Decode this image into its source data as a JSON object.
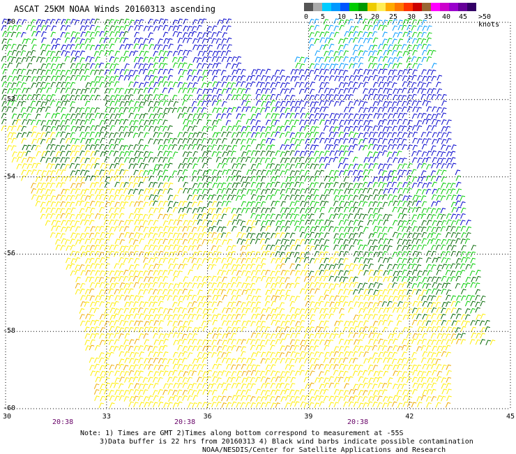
{
  "title": "ASCAT 25KM NOAA Winds 20160313 ascending",
  "legend": {
    "labels": [
      "0",
      "5",
      "10",
      "15",
      "20",
      "25",
      "30",
      "35",
      "40",
      "45",
      ">50 knots"
    ],
    "colors": [
      "#555555",
      "#aaaaaa",
      "#00ccff",
      "#0099ff",
      "#0055ff",
      "#00cc00",
      "#009900",
      "#eecc00",
      "#ffee55",
      "#ffaa00",
      "#ff7700",
      "#ff3300",
      "#cc0000",
      "#996633",
      "#ff00ff",
      "#cc00cc",
      "#9900cc",
      "#660099",
      "#330066"
    ]
  },
  "lat_labels": [
    "-50",
    "-52",
    "-54",
    "-56",
    "-58",
    "-60"
  ],
  "lon_labels": [
    "30",
    "33",
    "36",
    "39",
    "42",
    "45"
  ],
  "time_labels": [
    "20:38",
    "20:38",
    "20:38"
  ],
  "notes": [
    "Note: 1) Times are GMT 2)Times along bottom correspond to measurement at -55S",
    "3)Data buffer is 22 hrs from 20160313 4) Black wind barbs indicate possible contamination",
    "NOAA/NESDIS/Center for Satellite Applications and Research"
  ],
  "wind_colors": {
    "blue": "#0000cc",
    "lightblue": "#0099ff",
    "green": "#00cc00",
    "darkgreen": "#006600",
    "yellow": "#ffee00",
    "orange": "#eeaa00"
  }
}
